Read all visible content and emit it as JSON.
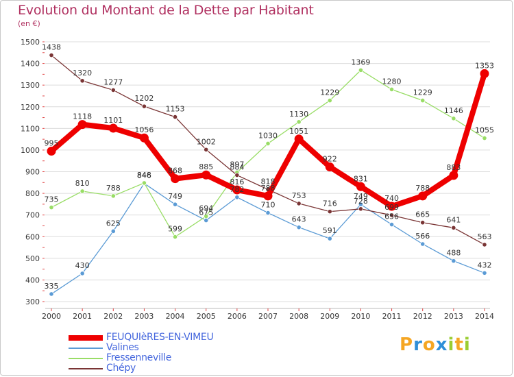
{
  "chart_data": {
    "type": "line",
    "title": "Evolution du Montant de la Dette par Habitant",
    "subtitle": "(en €)",
    "x": [
      "2000",
      "2001",
      "2002",
      "2003",
      "2004",
      "2005",
      "2006",
      "2007",
      "2008",
      "2009",
      "2010",
      "2011",
      "2012",
      "2013",
      "2014"
    ],
    "ylim": [
      300,
      1500
    ],
    "yticks": [
      300,
      400,
      500,
      600,
      700,
      800,
      900,
      1000,
      1100,
      1200,
      1300,
      1400,
      1500
    ],
    "grid": "horizontal",
    "legend_position": "bottom-left",
    "series": [
      {
        "name": "FEUQUIèRES-EN-VIMEU",
        "color": "#ee0000",
        "emphasis": true,
        "values": [
          995,
          1118,
          1101,
          1056,
          868,
          885,
          816,
          788,
          1051,
          922,
          831,
          740,
          788,
          883,
          1353
        ],
        "labels": [
          "995",
          "1118",
          "1101",
          "1056",
          "868",
          "885",
          "816",
          "788",
          "1051",
          "922",
          "831",
          "740",
          "788",
          "883",
          "1353"
        ]
      },
      {
        "name": "Valines",
        "color": "#5b9bd5",
        "values": [
          335,
          430,
          625,
          846,
          749,
          675,
          782,
          710,
          643,
          591,
          749,
          656,
          566,
          488,
          432
        ],
        "labels": [
          "335",
          "430",
          "625",
          "846",
          "749",
          "675",
          "782",
          "710",
          "643",
          "591",
          "749",
          "656",
          "566",
          "488",
          "432"
        ]
      },
      {
        "name": "Fressenneville",
        "color": "#99dd66",
        "values": [
          735,
          810,
          788,
          848,
          599,
          694,
          897,
          1030,
          1130,
          1229,
          1369,
          1280,
          1229,
          1146,
          1055
        ],
        "labels": [
          "735",
          "810",
          "788",
          "848",
          "599",
          "694",
          "897",
          "1030",
          "1130",
          "1229",
          "1369",
          "1280",
          "1229",
          "1146",
          "1055"
        ]
      },
      {
        "name": "Chépy",
        "color": "#7a3535",
        "values": [
          1438,
          1320,
          1277,
          1202,
          1153,
          1002,
          884,
          818,
          753,
          716,
          728,
          699,
          665,
          641,
          563
        ],
        "labels": [
          "1438",
          "1320",
          "1277",
          "1202",
          "1153",
          "1002",
          "884",
          "818",
          "753",
          "716",
          "728",
          "699",
          "665",
          "641",
          "563"
        ]
      }
    ]
  },
  "logo": {
    "letters": [
      "P",
      "r",
      "o",
      "x",
      "i",
      "t",
      "i"
    ],
    "colors": [
      "#f5a623",
      "#2f8fd8",
      "#f5a623",
      "#2f8fd8",
      "#9acd32",
      "#f5a623",
      "#9acd32"
    ]
  }
}
